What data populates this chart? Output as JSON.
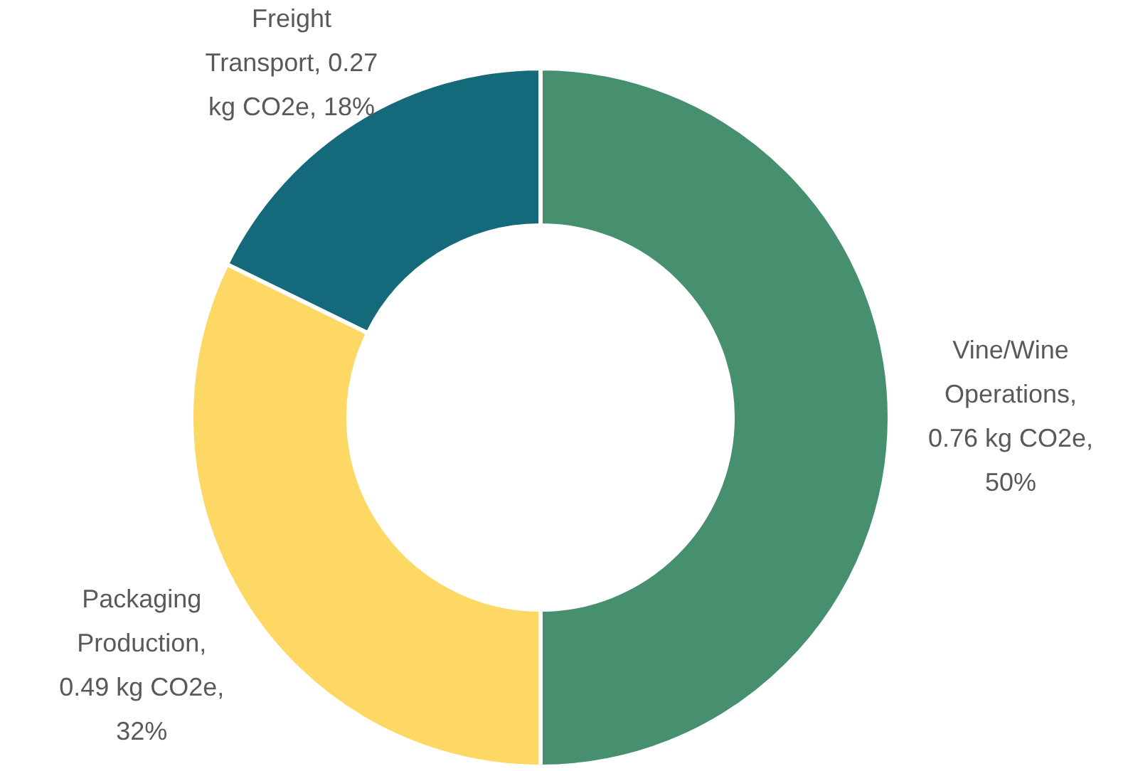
{
  "chart_data": {
    "type": "donut",
    "categories": [
      "Vine/Wine Operations",
      "Packaging Production",
      "Freight Transport"
    ],
    "values": [
      0.76,
      0.49,
      0.27
    ],
    "colors": [
      "#468f6f",
      "#fdd865",
      "#14697b"
    ],
    "value_labels": [
      ", 0.76 kg CO2e, 50%",
      ", 0.49 kg CO2e, 32%",
      ", 0.27 kg CO2e, 18%"
    ],
    "legend": false
  }
}
